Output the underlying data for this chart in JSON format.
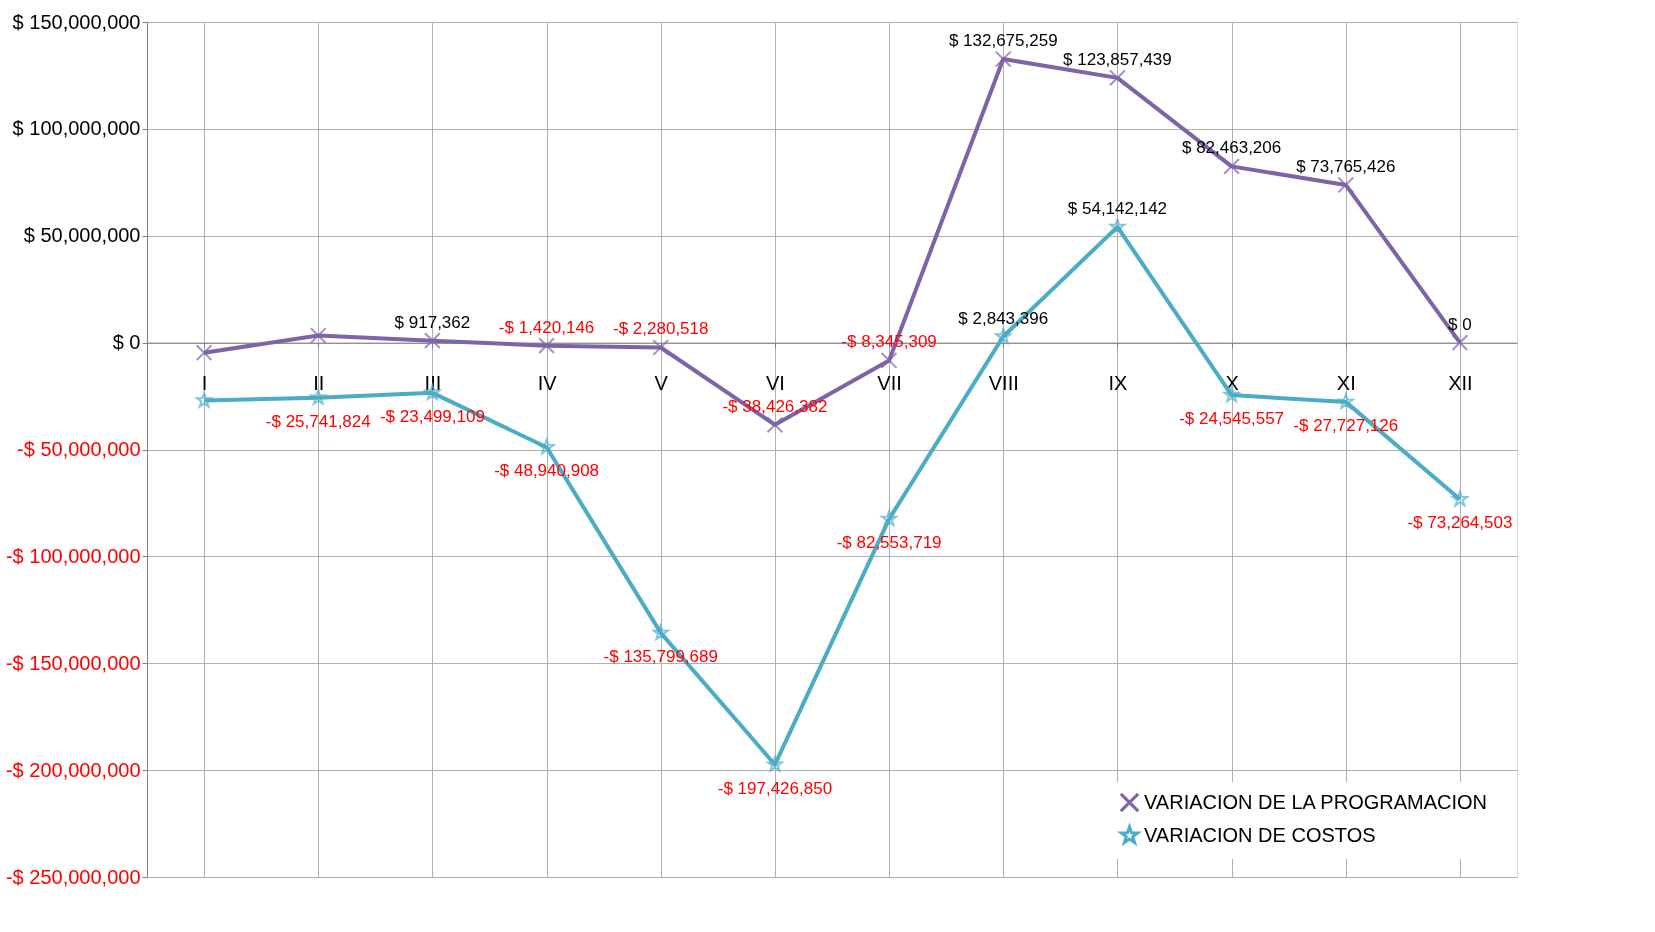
{
  "chart_data": {
    "type": "line",
    "categories": [
      "I",
      "II",
      "III",
      "IV",
      "V",
      "VI",
      "VII",
      "VIII",
      "IX",
      "X",
      "XI",
      "XII"
    ],
    "series": [
      {
        "name": "VARIACION DE LA PROGRAMACION",
        "color": "#7f63a8",
        "marker": "cross",
        "values": [
          -4700000,
          3300000,
          917362,
          -1420146,
          -2280518,
          -38426382,
          -8345309,
          132675259,
          123857439,
          82463206,
          73765426,
          0
        ],
        "value_labels": [
          null,
          null,
          "$ 917,362",
          "-$ 1,420,146",
          "-$ 2,280,518",
          "-$ 38,426,382",
          "-$ 8,345,309",
          "$ 132,675,259",
          "$ 123,857,439",
          "$ 82,463,206",
          "$ 73,765,426",
          "$ 0"
        ]
      },
      {
        "name": "VARIACION DE COSTOS",
        "color": "#4bacc6",
        "marker": "star",
        "values": [
          -27100000,
          -25741824,
          -23499109,
          -48940908,
          -135799689,
          -197426850,
          -82553719,
          2843396,
          54142142,
          -24545557,
          -27727126,
          -73264503
        ],
        "value_labels": [
          null,
          "-$ 25,741,824",
          "-$ 23,499,109",
          "-$ 48,940,908",
          "-$ 135,799,689",
          "-$ 197,426,850",
          "-$ 82,553,719",
          "$ 2,843,396",
          "$ 54,142,142",
          "-$ 24,545,557",
          "-$ 27,727,126",
          "-$ 73,264,503"
        ]
      }
    ],
    "ylim": [
      -250000000,
      150000000
    ],
    "yticks": [
      {
        "value": -250000000,
        "label": "-$ 250,000,000"
      },
      {
        "value": -200000000,
        "label": "-$ 200,000,000"
      },
      {
        "value": -150000000,
        "label": "-$ 150,000,000"
      },
      {
        "value": -100000000,
        "label": "-$ 100,000,000"
      },
      {
        "value": -50000000,
        "label": "-$ 50,000,000"
      },
      {
        "value": 0,
        "label": "$ 0"
      },
      {
        "value": 50000000,
        "label": "$ 50,000,000"
      },
      {
        "value": 100000000,
        "label": "$ 100,000,000"
      },
      {
        "value": 150000000,
        "label": "$ 150,000,000"
      }
    ],
    "grid": true,
    "legend": "bottom right",
    "line_style": "solid"
  }
}
